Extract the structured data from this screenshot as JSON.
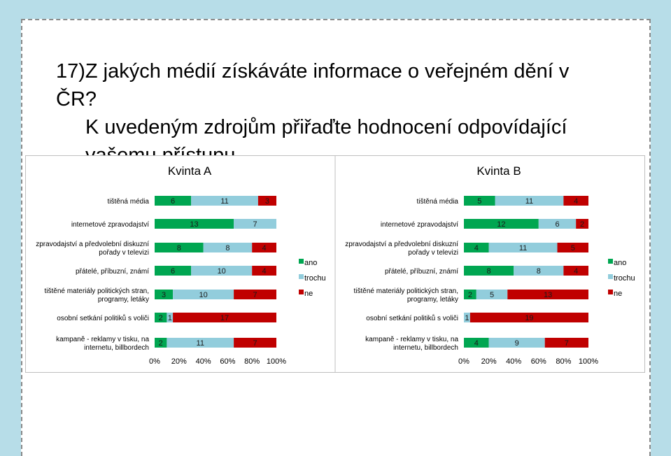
{
  "heading": {
    "line1": "17)Z jakých médií získáváte informace o veřejném dění v ČR?",
    "line2": "K uvedeným zdrojům přiřaďte hodnocení odpovídající",
    "line3": "vašemu přístupu."
  },
  "colors": {
    "ano": "#00a651",
    "trochu": "#92cddc",
    "ne": "#c00000"
  },
  "chart_data": [
    {
      "type": "bar",
      "orientation": "horizontal",
      "stacked": "percent",
      "title": "Kvinta A",
      "categories": [
        "tištěná média",
        "internetové zpravodajství",
        "zpravodajství a předvolební diskuzní pořady v televizi",
        "přátelé, příbuzní, známí",
        "tištěné materiály politických stran, programy, letáky",
        "osobní setkání politiků s voliči",
        "kampaně - reklamy v tisku, na internetu, billbordech"
      ],
      "series": [
        {
          "name": "ano",
          "values": [
            6,
            13,
            8,
            6,
            3,
            2,
            2
          ]
        },
        {
          "name": "trochu",
          "values": [
            11,
            7,
            8,
            10,
            10,
            1,
            11
          ]
        },
        {
          "name": "ne",
          "values": [
            3,
            0,
            4,
            4,
            7,
            17,
            7
          ]
        }
      ],
      "xticks": [
        "0%",
        "20%",
        "40%",
        "60%",
        "80%",
        "100%"
      ],
      "legend": "right"
    },
    {
      "type": "bar",
      "orientation": "horizontal",
      "stacked": "percent",
      "title": "Kvinta B",
      "categories": [
        "tištěná média",
        "internetové zpravodajství",
        "zpravodajství a předvolební diskuzní pořady v televizi",
        "přátelé, příbuzní, známí",
        "tištěné materiály politických stran, programy, letáky",
        "osobní setkání politiků s voliči",
        "kampaně - reklamy v tisku, na internetu, billbordech"
      ],
      "series": [
        {
          "name": "ano",
          "values": [
            5,
            12,
            4,
            8,
            2,
            0,
            4
          ]
        },
        {
          "name": "trochu",
          "values": [
            11,
            6,
            11,
            8,
            5,
            1,
            9
          ]
        },
        {
          "name": "ne",
          "values": [
            4,
            2,
            5,
            4,
            13,
            19,
            7
          ]
        }
      ],
      "xticks": [
        "0%",
        "20%",
        "40%",
        "60%",
        "80%",
        "100%"
      ],
      "legend": "right"
    }
  ]
}
